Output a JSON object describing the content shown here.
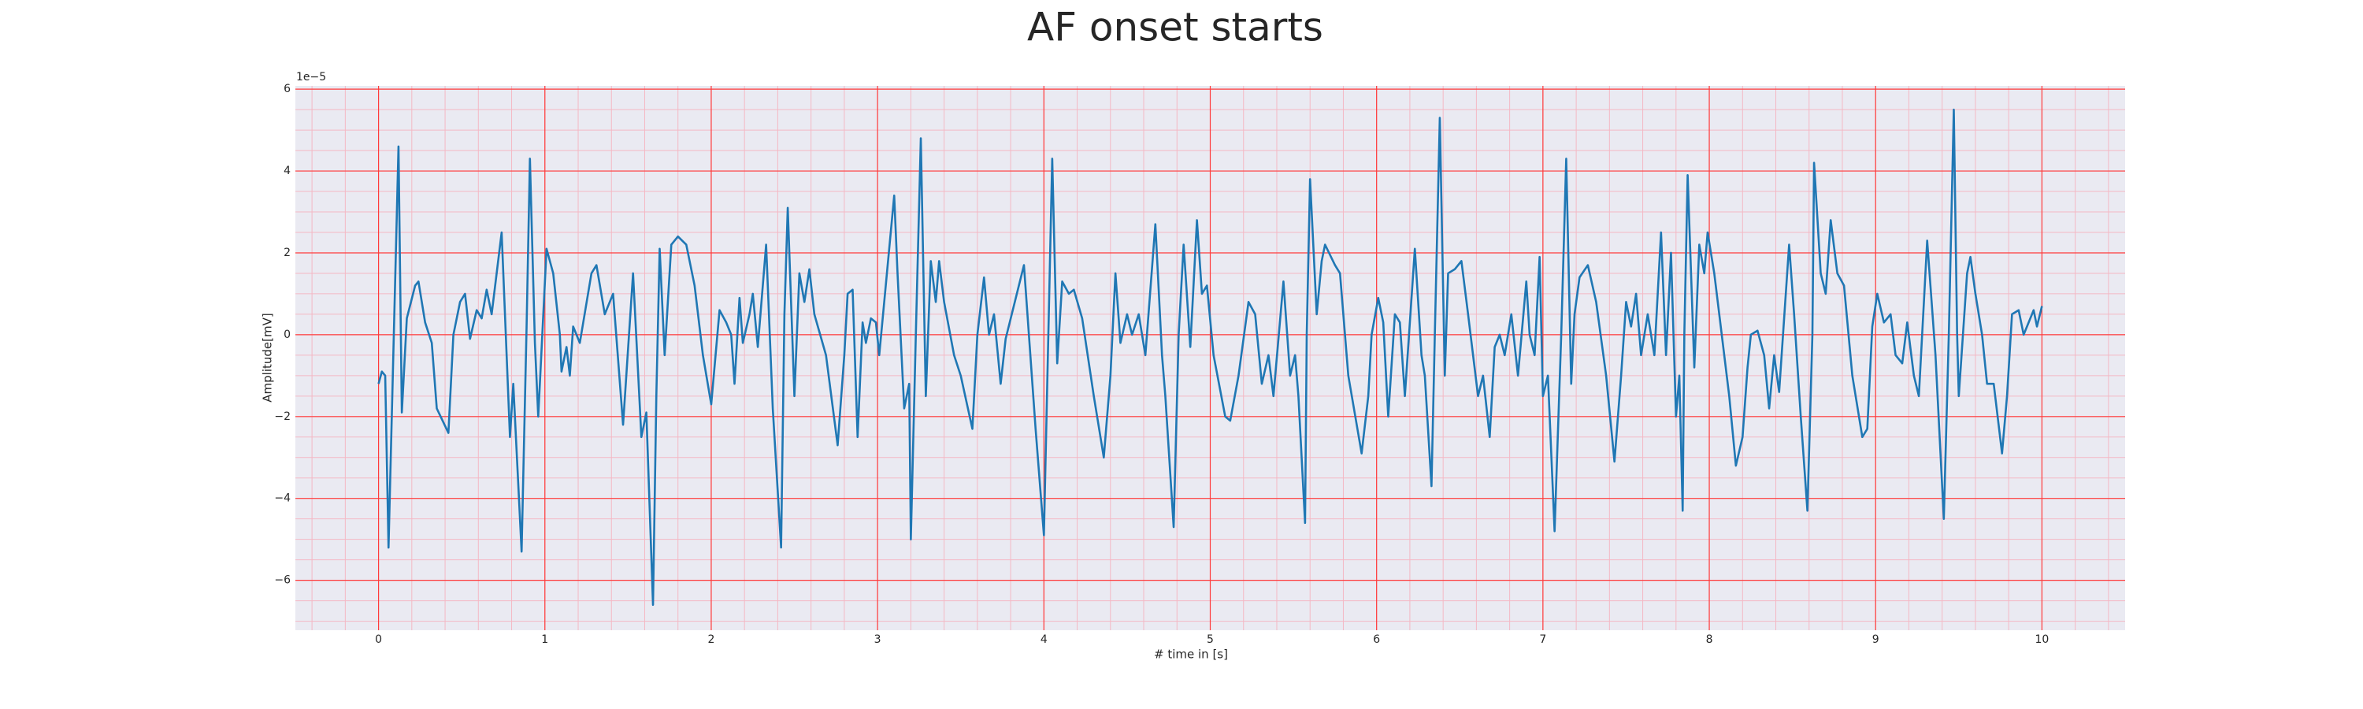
{
  "chart_data": {
    "type": "line",
    "title": "AF onset starts",
    "xlabel": "# time in [s]",
    "ylabel": "Amplitude[mV]",
    "y_offset_label": "1e−5",
    "color": "#1f77b4",
    "background": "#eaeaf2",
    "grid": true,
    "grid_color": "#ff3b3b",
    "minor_grid_color": "#f4b8c4",
    "xlim": [
      -0.5,
      10.5
    ],
    "ylim": [
      -7.22,
      6.08
    ],
    "xticks": [
      0,
      1,
      2,
      3,
      4,
      5,
      6,
      7,
      8,
      9,
      10
    ],
    "yticks": [
      {
        "value": -6,
        "label": "−6"
      },
      {
        "value": -4,
        "label": "−4"
      },
      {
        "value": -2,
        "label": "−2"
      },
      0,
      2,
      4,
      6
    ],
    "xminorticks": [
      -0.4,
      -0.2,
      0,
      0.2,
      0.4,
      0.6,
      0.8,
      1,
      1.2,
      1.4,
      1.6,
      1.8,
      2,
      2.2,
      2.4,
      2.6,
      2.8,
      3,
      3.2,
      3.4,
      3.6,
      3.8,
      4,
      4.2,
      4.4,
      4.6,
      4.8,
      5,
      5.2,
      5.4,
      5.6,
      5.8,
      6,
      6.2,
      6.4,
      6.6,
      6.8,
      7,
      7.2,
      7.4,
      7.6,
      7.8,
      8,
      8.2,
      8.4,
      8.6,
      8.8,
      9,
      9.2,
      9.4,
      9.6,
      9.8,
      10,
      10.2,
      10.4
    ],
    "yminorticks": [
      -7,
      -6.5,
      -6,
      -5.5,
      -5,
      -4.5,
      -4,
      -3.5,
      -3,
      -2.5,
      -2,
      -1.5,
      -1,
      -0.5,
      0,
      0.5,
      1,
      1.5,
      2,
      2.5,
      3,
      3.5,
      4,
      4.5,
      5,
      5.5,
      6
    ],
    "x": [
      0.0,
      0.02,
      0.04,
      0.06,
      0.12,
      0.14,
      0.17,
      0.22,
      0.24,
      0.28,
      0.32,
      0.35,
      0.42,
      0.45,
      0.49,
      0.52,
      0.55,
      0.59,
      0.62,
      0.65,
      0.68,
      0.74,
      0.79,
      0.81,
      0.86,
      0.89,
      0.91,
      0.94,
      0.96,
      1.01,
      1.05,
      1.09,
      1.1,
      1.13,
      1.15,
      1.17,
      1.21,
      1.28,
      1.31,
      1.36,
      1.41,
      1.47,
      1.53,
      1.58,
      1.61,
      1.65,
      1.67,
      1.69,
      1.72,
      1.76,
      1.8,
      1.85,
      1.9,
      1.95,
      2.0,
      2.05,
      2.09,
      2.12,
      2.14,
      2.17,
      2.19,
      2.23,
      2.25,
      2.28,
      2.33,
      2.37,
      2.42,
      2.44,
      2.46,
      2.5,
      2.53,
      2.56,
      2.59,
      2.62,
      2.69,
      2.76,
      2.8,
      2.82,
      2.85,
      2.88,
      2.91,
      2.93,
      2.96,
      2.99,
      3.01,
      3.1,
      3.12,
      3.16,
      3.19,
      3.2,
      3.23,
      3.26,
      3.29,
      3.32,
      3.35,
      3.37,
      3.4,
      3.46,
      3.5,
      3.57,
      3.6,
      3.64,
      3.67,
      3.7,
      3.74,
      3.77,
      3.88,
      3.95,
      4.0,
      4.05,
      4.08,
      4.11,
      4.15,
      4.18,
      4.23,
      4.3,
      4.36,
      4.4,
      4.43,
      4.46,
      4.5,
      4.53,
      4.57,
      4.61,
      4.67,
      4.71,
      4.73,
      4.78,
      4.81,
      4.84,
      4.88,
      4.92,
      4.95,
      4.98,
      5.02,
      5.09,
      5.12,
      5.17,
      5.23,
      5.27,
      5.31,
      5.35,
      5.38,
      5.44,
      5.48,
      5.51,
      5.53,
      5.57,
      5.58,
      5.6,
      5.64,
      5.67,
      5.69,
      5.75,
      5.78,
      5.83,
      5.91,
      5.95,
      5.97,
      6.01,
      6.04,
      6.07,
      6.11,
      6.14,
      6.17,
      6.23,
      6.27,
      6.29,
      6.33,
      6.35,
      6.38,
      6.41,
      6.43,
      6.47,
      6.51,
      6.55,
      6.61,
      6.64,
      6.68,
      6.71,
      6.74,
      6.77,
      6.81,
      6.85,
      6.9,
      6.92,
      6.95,
      6.98,
      7.0,
      7.03,
      7.07,
      7.11,
      7.14,
      7.17,
      7.19,
      7.22,
      7.27,
      7.32,
      7.38,
      7.43,
      7.47,
      7.5,
      7.53,
      7.56,
      7.59,
      7.63,
      7.67,
      7.71,
      7.74,
      7.77,
      7.8,
      7.82,
      7.84,
      7.85,
      7.87,
      7.91,
      7.94,
      7.97,
      7.99,
      8.03,
      8.06,
      8.12,
      8.16,
      8.2,
      8.23,
      8.25,
      8.29,
      8.33,
      8.36,
      8.39,
      8.42,
      8.48,
      8.51,
      8.55,
      8.59,
      8.62,
      8.63,
      8.67,
      8.7,
      8.73,
      8.77,
      8.81,
      8.86,
      8.92,
      8.95,
      8.98,
      9.01,
      9.05,
      9.09,
      9.12,
      9.16,
      9.19,
      9.23,
      9.26,
      9.31,
      9.36,
      9.41,
      9.44,
      9.47,
      9.49,
      9.5,
      9.55,
      9.57,
      9.6,
      9.64,
      9.67,
      9.71,
      9.76,
      9.79,
      9.82,
      9.86,
      9.89,
      9.93,
      9.95,
      9.97,
      10.0
    ],
    "values": [
      -1.2,
      -0.9,
      -1.0,
      -5.2,
      4.6,
      -1.9,
      0.4,
      1.2,
      1.3,
      0.3,
      -0.2,
      -1.8,
      -2.4,
      0,
      0.8,
      1.0,
      -0.1,
      0.6,
      0.4,
      1.1,
      0.5,
      2.5,
      -2.5,
      -1.2,
      -5.3,
      0.2,
      4.3,
      -0.2,
      -2.0,
      2.1,
      1.5,
      0,
      -0.9,
      -0.3,
      -1.0,
      0.2,
      -0.2,
      1.5,
      1.7,
      0.5,
      1.0,
      -2.2,
      1.5,
      -2.5,
      -1.9,
      -6.6,
      -1.5,
      2.1,
      -0.5,
      2.2,
      2.4,
      2.2,
      1.2,
      -0.5,
      -1.7,
      0.6,
      0.3,
      0,
      -1.2,
      0.9,
      -0.2,
      0.5,
      1.0,
      -0.3,
      2.2,
      -1.8,
      -5.2,
      0.5,
      3.1,
      -1.5,
      1.5,
      0.8,
      1.6,
      0.5,
      -0.5,
      -2.7,
      -0.5,
      1.0,
      1.1,
      -2.5,
      0.3,
      -0.2,
      0.4,
      0.3,
      -0.5,
      3.4,
      1.5,
      -1.8,
      -1.2,
      -5.0,
      0,
      4.8,
      -1.5,
      1.8,
      0.8,
      1.8,
      0.8,
      -0.5,
      -1.0,
      -2.3,
      0,
      1.4,
      0,
      0.5,
      -1.2,
      -0.1,
      1.7,
      -2.3,
      -4.9,
      4.3,
      -0.7,
      1.3,
      1.0,
      1.1,
      0.4,
      -1.5,
      -3.0,
      -1.0,
      1.5,
      -0.2,
      0.5,
      0,
      0.5,
      -0.5,
      2.7,
      -0.5,
      -1.5,
      -4.7,
      0,
      2.2,
      -0.3,
      2.8,
      1.0,
      1.2,
      -0.5,
      -2.0,
      -2.1,
      -1.0,
      0.8,
      0.5,
      -1.2,
      -0.5,
      -1.5,
      1.3,
      -1.0,
      -0.5,
      -1.5,
      -4.6,
      0,
      3.8,
      0.5,
      1.8,
      2.2,
      1.7,
      1.5,
      -1.0,
      -2.9,
      -1.5,
      0,
      0.9,
      0.3,
      -2.0,
      0.5,
      0.3,
      -1.5,
      2.1,
      -0.5,
      -1.0,
      -3.7,
      0,
      5.3,
      -1.0,
      1.5,
      1.6,
      1.8,
      0.5,
      -1.5,
      -1.0,
      -2.5,
      -0.3,
      0,
      -0.5,
      0.5,
      -1.0,
      1.3,
      0,
      -0.5,
      1.9,
      -1.5,
      -1.0,
      -4.8,
      0,
      4.3,
      -1.2,
      0.5,
      1.4,
      1.7,
      0.8,
      -1.0,
      -3.1,
      -1.0,
      0.8,
      0.2,
      1.0,
      -0.5,
      0.5,
      -0.5,
      2.5,
      -0.5,
      2.0,
      -2.0,
      -1.0,
      -4.3,
      0,
      3.9,
      -0.8,
      2.2,
      1.5,
      2.5,
      1.5,
      0.5,
      -1.5,
      -3.2,
      -2.5,
      -0.8,
      0,
      0.1,
      -0.5,
      -1.8,
      -0.5,
      -1.4,
      2.2,
      0.5,
      -2.0,
      -4.3,
      0,
      4.2,
      1.5,
      1.0,
      2.8,
      1.5,
      1.2,
      -1.0,
      -2.5,
      -2.3,
      0.2,
      1.0,
      0.3,
      0.5,
      -0.5,
      -0.7,
      0.3,
      -1.0,
      -1.5,
      2.3,
      -0.5,
      -4.5,
      0,
      5.5,
      0,
      -1.5,
      1.5,
      1.9,
      1.0,
      0,
      -1.2,
      -1.2,
      -2.9,
      -1.5,
      0.5,
      0.6,
      0,
      0.4,
      0.6,
      0.2,
      0.7
    ]
  }
}
